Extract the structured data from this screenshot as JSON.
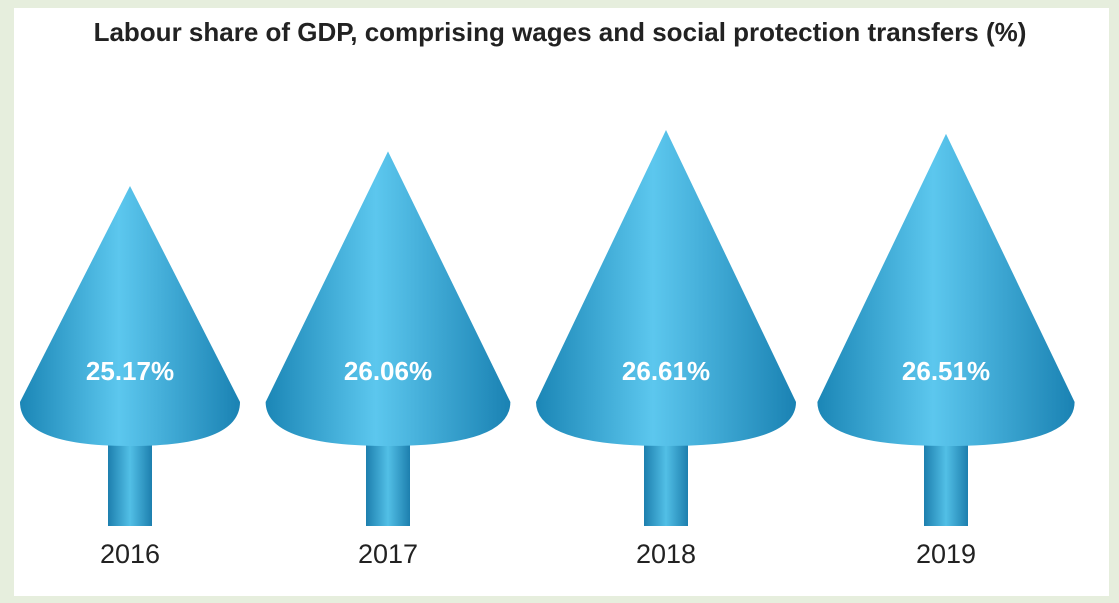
{
  "chart_data": {
    "type": "cone",
    "title": "Labour share of GDP, comprising wages and social protection transfers (%)",
    "categories": [
      "2016",
      "2017",
      "2018",
      "2019"
    ],
    "values": [
      25.17,
      26.06,
      26.61,
      26.51
    ],
    "value_labels": [
      "25.17%",
      "26.06%",
      "26.61%",
      "26.51%"
    ],
    "color": "#2ea3d2"
  }
}
